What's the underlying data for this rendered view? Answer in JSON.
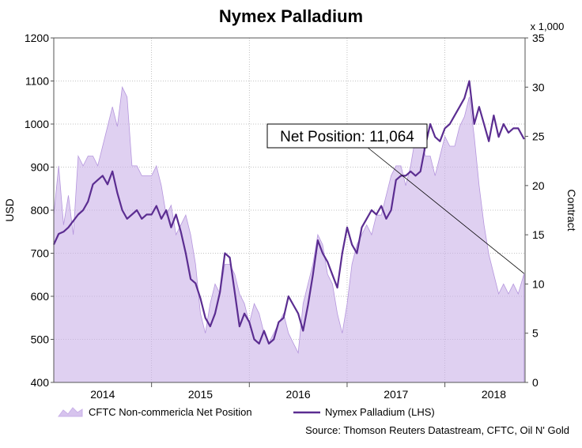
{
  "chart_data": {
    "type": "line",
    "title": "Nymex Palladium",
    "ylabel_left": "USD",
    "ylabel_right": "Contract",
    "right_unit": "x 1,000",
    "ylim_left": [
      400,
      1200
    ],
    "ylim_right": [
      0,
      35
    ],
    "yticks_left": [
      "400",
      "500",
      "600",
      "700",
      "800",
      "900",
      "1000",
      "1100",
      "1200"
    ],
    "yticks_right": [
      "0",
      "5",
      "10",
      "15",
      "20",
      "25",
      "30",
      "35"
    ],
    "xlim": [
      2013.5,
      2018.32
    ],
    "x_tick_labels": [
      "2014",
      "2015",
      "2016",
      "2017",
      "2018"
    ],
    "x_tick_positions": [
      2014,
      2015,
      2016,
      2017,
      2018
    ],
    "grid": true,
    "legend_position": "bottom",
    "source": "Source: Thomson Reuters Datastream, CFTC, Oil N' Gold",
    "annotation": {
      "text": "Net Position: 11,064",
      "x": 2018.31,
      "y": 11.064
    },
    "series": [
      {
        "name": "CFTC Non-commericla Net Position",
        "kind": "area",
        "axis": "right",
        "color": "#c9b0e8",
        "x": [
          2013.5,
          2013.55,
          2013.6,
          2013.65,
          2013.7,
          2013.75,
          2013.8,
          2013.85,
          2013.9,
          2013.95,
          2014.0,
          2014.05,
          2014.1,
          2014.15,
          2014.2,
          2014.25,
          2014.3,
          2014.35,
          2014.4,
          2014.45,
          2014.5,
          2014.55,
          2014.6,
          2014.65,
          2014.7,
          2014.75,
          2014.8,
          2014.85,
          2014.9,
          2014.95,
          2015.0,
          2015.05,
          2015.1,
          2015.15,
          2015.2,
          2015.25,
          2015.3,
          2015.35,
          2015.4,
          2015.45,
          2015.5,
          2015.55,
          2015.6,
          2015.65,
          2015.7,
          2015.75,
          2015.8,
          2015.85,
          2015.9,
          2015.95,
          2016.0,
          2016.05,
          2016.1,
          2016.15,
          2016.2,
          2016.25,
          2016.3,
          2016.35,
          2016.4,
          2016.45,
          2016.5,
          2016.55,
          2016.6,
          2016.65,
          2016.7,
          2016.75,
          2016.8,
          2016.85,
          2016.9,
          2016.95,
          2017.0,
          2017.05,
          2017.1,
          2017.15,
          2017.2,
          2017.25,
          2017.3,
          2017.35,
          2017.4,
          2017.45,
          2017.5,
          2017.55,
          2017.6,
          2017.65,
          2017.7,
          2017.75,
          2017.8,
          2017.85,
          2017.9,
          2017.95,
          2018.0,
          2018.05,
          2018.1,
          2018.15,
          2018.2,
          2018.25,
          2018.31
        ],
        "values": [
          17,
          22,
          16,
          19,
          15,
          23,
          22,
          23,
          23,
          22,
          24,
          26,
          28,
          26,
          30,
          29,
          22,
          22,
          21,
          21,
          21,
          22,
          20,
          17,
          18,
          15,
          16,
          17,
          15,
          12,
          7,
          5,
          8,
          10,
          9,
          12,
          12,
          11,
          9,
          8,
          6,
          8,
          7,
          5,
          4,
          5,
          6,
          7,
          5,
          4,
          3,
          8,
          10,
          12,
          15,
          14,
          11,
          10,
          7,
          5,
          8,
          12,
          14,
          15,
          16,
          15,
          17,
          17,
          19,
          21,
          22,
          22,
          20,
          22,
          25,
          25,
          23,
          23,
          21,
          23,
          25,
          24,
          24,
          26,
          27,
          29,
          25,
          20,
          16,
          13,
          11,
          9,
          10,
          9,
          10,
          9,
          11.064
        ]
      },
      {
        "name": "Nymex Palladium (LHS)",
        "kind": "line",
        "axis": "left",
        "color": "#5b2d91",
        "x": [
          2013.5,
          2013.55,
          2013.6,
          2013.65,
          2013.7,
          2013.75,
          2013.8,
          2013.85,
          2013.9,
          2013.95,
          2014.0,
          2014.05,
          2014.1,
          2014.15,
          2014.2,
          2014.25,
          2014.3,
          2014.35,
          2014.4,
          2014.45,
          2014.5,
          2014.55,
          2014.6,
          2014.65,
          2014.7,
          2014.75,
          2014.8,
          2014.85,
          2014.9,
          2014.95,
          2015.0,
          2015.05,
          2015.1,
          2015.15,
          2015.2,
          2015.25,
          2015.3,
          2015.35,
          2015.4,
          2015.45,
          2015.5,
          2015.55,
          2015.6,
          2015.65,
          2015.7,
          2015.75,
          2015.8,
          2015.85,
          2015.9,
          2015.95,
          2016.0,
          2016.05,
          2016.1,
          2016.15,
          2016.2,
          2016.25,
          2016.3,
          2016.35,
          2016.4,
          2016.45,
          2016.5,
          2016.55,
          2016.6,
          2016.65,
          2016.7,
          2016.75,
          2016.8,
          2016.85,
          2016.9,
          2016.95,
          2017.0,
          2017.05,
          2017.1,
          2017.15,
          2017.2,
          2017.25,
          2017.3,
          2017.35,
          2017.4,
          2017.45,
          2017.5,
          2017.55,
          2017.6,
          2017.65,
          2017.7,
          2017.75,
          2017.8,
          2017.85,
          2017.9,
          2017.95,
          2018.0,
          2018.05,
          2018.1,
          2018.15,
          2018.2,
          2018.25,
          2018.31
        ],
        "values": [
          720,
          745,
          750,
          760,
          775,
          790,
          800,
          820,
          860,
          870,
          880,
          860,
          890,
          840,
          800,
          780,
          790,
          800,
          780,
          790,
          790,
          810,
          780,
          800,
          760,
          790,
          750,
          700,
          640,
          630,
          595,
          550,
          530,
          560,
          610,
          700,
          690,
          610,
          530,
          560,
          540,
          500,
          490,
          520,
          490,
          500,
          540,
          550,
          600,
          580,
          560,
          520,
          580,
          650,
          730,
          700,
          680,
          650,
          620,
          700,
          760,
          720,
          700,
          760,
          780,
          800,
          790,
          810,
          780,
          800,
          870,
          880,
          880,
          890,
          880,
          890,
          950,
          1000,
          970,
          960,
          990,
          1000,
          1020,
          1040,
          1060,
          1100,
          1000,
          1040,
          1000,
          960,
          1020,
          970,
          1000,
          980,
          990,
          990,
          965
        ]
      }
    ]
  }
}
